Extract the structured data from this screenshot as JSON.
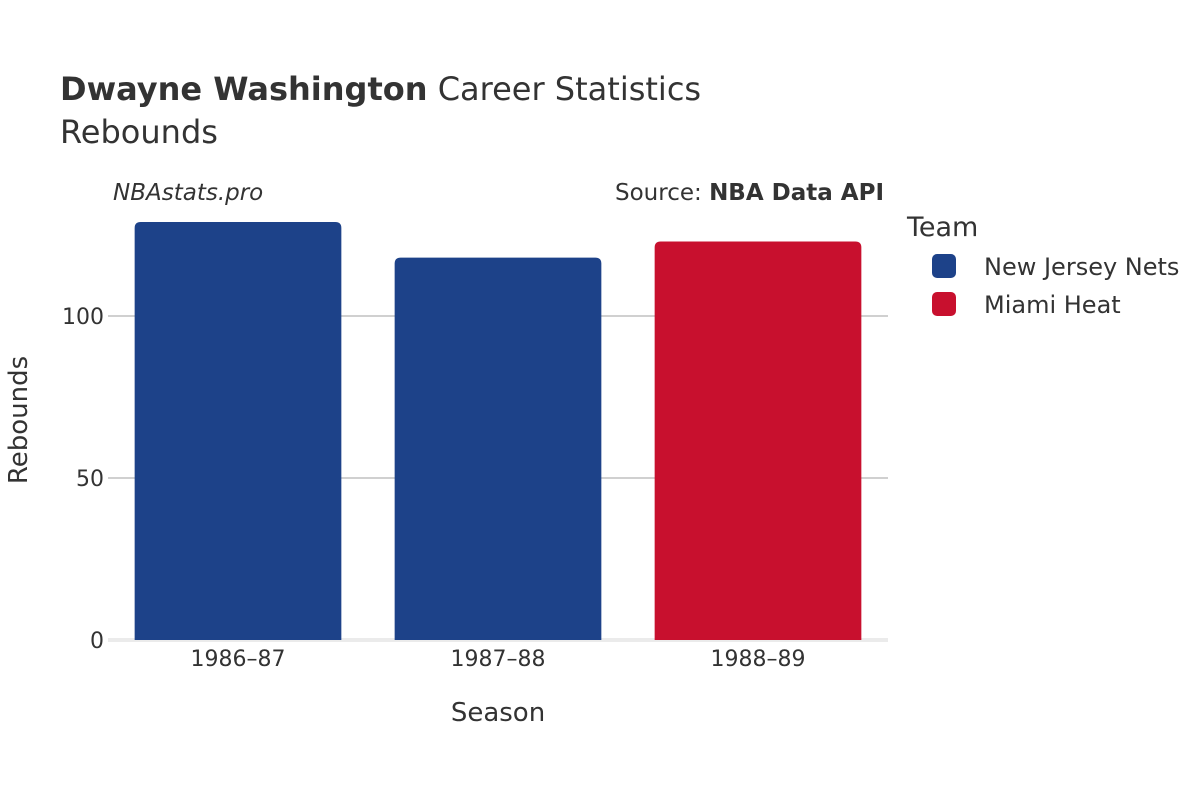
{
  "chart_data": {
    "type": "bar",
    "title_bold": "Dwayne Washington",
    "title_rest": " Career Statistics",
    "subtitle": "Rebounds",
    "watermark": "NBAstats.pro",
    "source_prefix": "Source: ",
    "source_name": "NBA Data API",
    "xlabel": "Season",
    "ylabel": "Rebounds",
    "ylim": [
      0,
      130
    ],
    "yticks": [
      0,
      50,
      100
    ],
    "grid": true,
    "categories": [
      "1986–87",
      "1987–88",
      "1988–89"
    ],
    "values": [
      129,
      118,
      123
    ],
    "bar_teams": [
      "New Jersey Nets",
      "New Jersey Nets",
      "Miami Heat"
    ],
    "legend": {
      "title": "Team",
      "placement": "right",
      "entries": [
        {
          "name": "New Jersey Nets",
          "color": "#1d4289"
        },
        {
          "name": "Miami Heat",
          "color": "#c8102e"
        }
      ]
    }
  }
}
